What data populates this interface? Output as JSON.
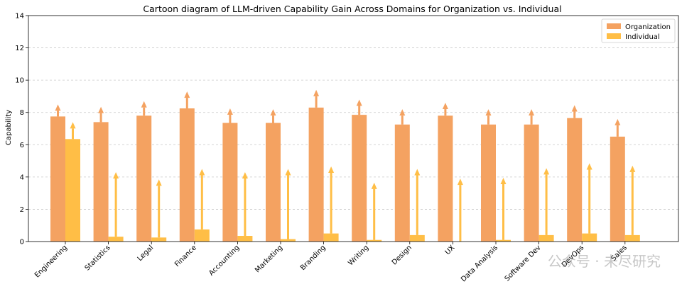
{
  "chart_data": {
    "type": "bar",
    "title": "Cartoon diagram of LLM-driven Capability Gain Across Domains for Organization vs. Individual",
    "xlabel": "",
    "ylabel": "Capability",
    "ylim": [
      0,
      14
    ],
    "yticks": [
      0,
      2,
      4,
      6,
      8,
      10,
      12,
      14
    ],
    "grid": "horizontal dashed",
    "legend_position": "top-right",
    "categories": [
      "Engineering",
      "Statistics",
      "Legal",
      "Finance",
      "Accounting",
      "Marketing",
      "Branding",
      "Writing",
      "Design",
      "UX",
      "Data Analysis",
      "Software Dev",
      "DevOps",
      "Sales"
    ],
    "series": [
      {
        "name": "Organization",
        "color": "#f4a261",
        "values": [
          7.75,
          7.4,
          7.8,
          8.25,
          7.35,
          7.35,
          8.3,
          7.85,
          7.25,
          7.8,
          7.25,
          7.25,
          7.65,
          6.5
        ],
        "arrow_tips": [
          8.5,
          8.35,
          8.7,
          9.3,
          8.25,
          8.2,
          9.4,
          8.8,
          8.2,
          8.6,
          8.2,
          8.2,
          8.45,
          7.6
        ]
      },
      {
        "name": "Individual",
        "color": "#ffbe46",
        "values": [
          6.35,
          0.3,
          0.25,
          0.75,
          0.35,
          0.15,
          0.5,
          0.1,
          0.4,
          0.0,
          0.1,
          0.4,
          0.5,
          0.4
        ],
        "arrow_tips": [
          7.4,
          4.3,
          3.85,
          4.5,
          4.3,
          4.5,
          4.65,
          3.65,
          4.5,
          3.9,
          3.95,
          4.55,
          4.85,
          4.7
        ]
      }
    ],
    "watermark": "公众号 · 未尽研究"
  }
}
